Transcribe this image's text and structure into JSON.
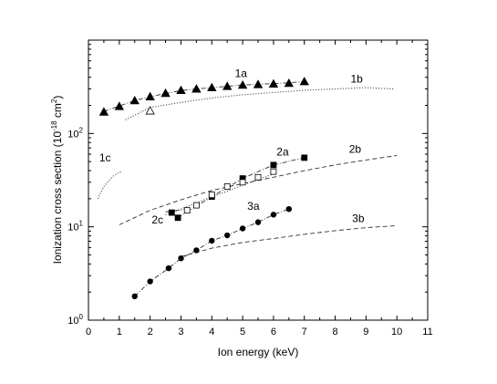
{
  "chart_data": {
    "type": "scatter",
    "title": "",
    "xlabel": "Ion energy (keV)",
    "ylabel_main": "Ionization cross section (10",
    "ylabel_exp": "-18",
    "ylabel_unit": " cm",
    "ylabel_unit_exp": "2",
    "ylabel_close": ")",
    "xlim": [
      0,
      11
    ],
    "ylim": [
      1,
      1000
    ],
    "yscale": "log",
    "grid": false,
    "legend": "none",
    "x_ticks": [
      "0",
      "1",
      "2",
      "3",
      "4",
      "5",
      "6",
      "7",
      "8",
      "9",
      "10",
      "11"
    ],
    "y_ticks": [
      {
        "value": 1,
        "base": "10",
        "exp": "0"
      },
      {
        "value": 10,
        "base": "10",
        "exp": "1"
      },
      {
        "value": 100,
        "base": "10",
        "exp": "2"
      }
    ],
    "series": [
      {
        "name": "1a",
        "kind": "markers",
        "marker": "filled-triangle",
        "x": [
          0.5,
          1.0,
          1.5,
          2.0,
          2.5,
          3.0,
          3.5,
          4.0,
          4.5,
          5.0,
          5.5,
          6.0,
          6.5,
          7.0
        ],
        "y": [
          170,
          195,
          225,
          248,
          270,
          290,
          300,
          310,
          320,
          330,
          335,
          340,
          345,
          360
        ]
      },
      {
        "name": "1a-open",
        "kind": "markers",
        "marker": "open-triangle",
        "x": [
          2.0
        ],
        "y": [
          175
        ]
      },
      {
        "name": "1a-fit",
        "kind": "line",
        "style": "dashdot",
        "x": [
          0.5,
          1.0,
          1.5,
          2.0,
          2.5,
          3.0,
          3.5,
          4.0,
          4.5,
          5.0,
          5.5,
          6.0,
          6.5,
          7.0
        ],
        "y": [
          172,
          197,
          225,
          248,
          268,
          288,
          300,
          310,
          320,
          330,
          337,
          343,
          350,
          360
        ]
      },
      {
        "name": "1b",
        "kind": "line",
        "style": "dotted",
        "x": [
          1.2,
          2.0,
          3.0,
          4.0,
          5.0,
          6.0,
          7.0,
          8.0,
          9.0,
          9.9
        ],
        "y": [
          140,
          190,
          215,
          240,
          260,
          275,
          290,
          300,
          310,
          300
        ]
      },
      {
        "name": "1c",
        "kind": "line",
        "style": "dotted",
        "x": [
          0.3,
          0.5,
          0.8,
          1.1
        ],
        "y": [
          20,
          27,
          35,
          40
        ]
      },
      {
        "name": "2a",
        "kind": "markers",
        "marker": "filled-square",
        "x": [
          2.9,
          4.0,
          5.0,
          6.0,
          7.0
        ],
        "y": [
          12.5,
          21,
          33,
          46,
          55
        ]
      },
      {
        "name": "2a-open",
        "kind": "markers",
        "marker": "open-square",
        "x": [
          3.2,
          3.5,
          4.0,
          4.5,
          5.0,
          5.5,
          6.0
        ],
        "y": [
          15,
          17,
          22,
          27,
          30,
          34,
          39
        ]
      },
      {
        "name": "2a-fit",
        "kind": "line",
        "style": "dashdot",
        "x": [
          2.9,
          4.0,
          5.0,
          6.0,
          7.0
        ],
        "y": [
          12.5,
          21,
          33,
          46,
          55
        ]
      },
      {
        "name": "2b",
        "kind": "line",
        "style": "dashed",
        "x": [
          1.0,
          2.0,
          3.0,
          4.0,
          5.0,
          6.0,
          7.0,
          8.0,
          9.0,
          10.0
        ],
        "y": [
          10.5,
          15,
          19.5,
          24.5,
          29,
          34,
          40,
          46,
          52,
          58
        ]
      },
      {
        "name": "2c",
        "kind": "line",
        "style": "dotted",
        "x": [
          2.5,
          3.0,
          3.5,
          4.0,
          4.5,
          5.0,
          5.5,
          6.0
        ],
        "y": [
          13.5,
          15.5,
          18,
          21,
          24,
          28,
          32,
          37
        ]
      },
      {
        "name": "2c-dash",
        "kind": "line",
        "style": "dashdot",
        "x": [
          2.5,
          2.9,
          3.3
        ],
        "y": [
          14.5,
          15,
          15.5
        ]
      },
      {
        "name": "2c-marker",
        "kind": "markers",
        "marker": "filled-square",
        "x": [
          2.7
        ],
        "y": [
          14.2
        ]
      },
      {
        "name": "3a",
        "kind": "markers",
        "marker": "filled-circle",
        "x": [
          1.5,
          2.0,
          2.6,
          3.0,
          3.5,
          4.0,
          4.5,
          5.0,
          5.5,
          6.0,
          6.5
        ],
        "y": [
          1.8,
          2.6,
          3.6,
          4.6,
          5.6,
          7.1,
          8.1,
          9.6,
          11.2,
          13.5,
          15.5
        ]
      },
      {
        "name": "3a-fit",
        "kind": "line",
        "style": "dashdot",
        "x": [
          1.5,
          2.0,
          2.6,
          3.0,
          3.5,
          4.0,
          4.5,
          5.0,
          5.5,
          6.0,
          6.5
        ],
        "y": [
          1.8,
          2.6,
          3.6,
          4.6,
          5.6,
          7.1,
          8.1,
          9.6,
          11.2,
          13.5,
          15.5
        ]
      },
      {
        "name": "3b",
        "kind": "line",
        "style": "dashed",
        "x": [
          3.0,
          4.0,
          5.0,
          6.0,
          7.0,
          8.0,
          9.0,
          10.0
        ],
        "y": [
          4.8,
          5.9,
          6.8,
          7.5,
          8.3,
          9.1,
          9.8,
          10.3
        ]
      }
    ],
    "annotations": [
      {
        "text": "1a",
        "x": 4.75,
        "y": 400
      },
      {
        "text": "1b",
        "x": 8.5,
        "y": 350
      },
      {
        "text": "1c",
        "x": 0.35,
        "y": 50
      },
      {
        "text": "2a",
        "x": 6.1,
        "y": 58
      },
      {
        "text": "2b",
        "x": 8.45,
        "y": 62
      },
      {
        "text": "2c",
        "x": 2.05,
        "y": 10.8
      },
      {
        "text": "3a",
        "x": 5.15,
        "y": 15.2
      },
      {
        "text": "3b",
        "x": 8.55,
        "y": 11.2
      }
    ]
  }
}
